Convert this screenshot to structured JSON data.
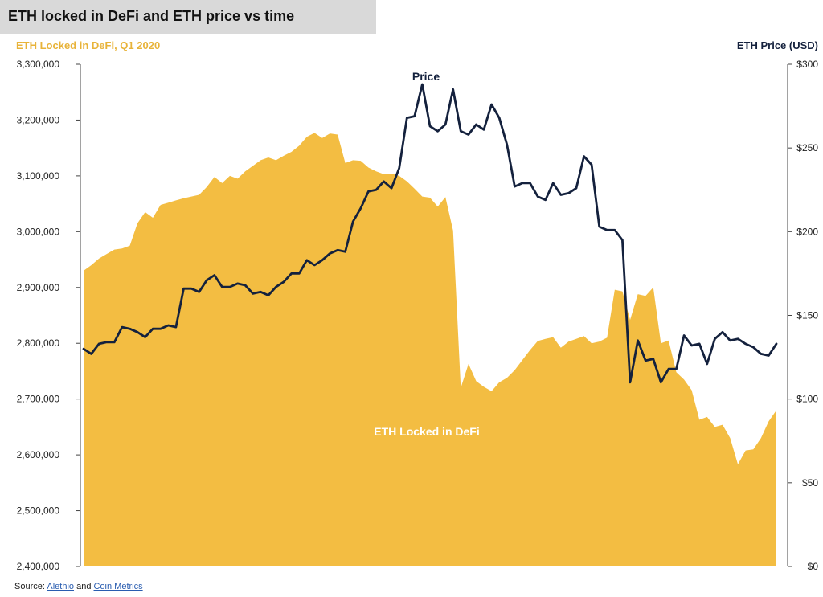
{
  "title": "ETH locked in DeFi and ETH price vs time",
  "source": {
    "prefix": "Source:",
    "link1": "Alethio",
    "joiner": "and",
    "link2": "Coin Metrics"
  },
  "colors": {
    "area": "#f3bd42",
    "line": "#14213d",
    "left_axis_label": "#e8b339",
    "right_axis_label": "#14213d",
    "title_bg": "#d9d9d9"
  },
  "chart_data": {
    "type": "area",
    "ylabel_left": "ETH Locked in DeFi, Q1 2020",
    "ylabel_right": "ETH Price (USD)",
    "ylim_left": [
      2400000,
      3300000
    ],
    "ylim_right": [
      0,
      300
    ],
    "yticks_left": [
      "3,300,000",
      "3,200,000",
      "3,100,000",
      "3,000,000",
      "2,900,000",
      "2,800,000",
      "2,700,000",
      "2,600,000",
      "2,500,000",
      "2,400,000"
    ],
    "yticks_right": [
      "$300",
      "$250",
      "$200",
      "$150",
      "$100",
      "$50",
      "$0"
    ],
    "annotations": {
      "price_label": "Price",
      "area_label": "ETH Locked in DeFi"
    },
    "series": [
      {
        "name": "ETH Locked in DeFi",
        "type": "area",
        "axis": "left",
        "x": [
          0,
          1,
          2,
          3,
          4,
          5,
          6,
          7,
          8,
          9,
          10,
          11,
          12,
          13,
          14,
          15,
          16,
          17,
          18,
          19,
          20,
          21,
          22,
          23,
          24,
          25,
          26,
          27,
          28,
          29,
          30,
          31,
          32,
          33,
          34,
          35,
          36,
          37,
          38,
          39,
          40,
          41,
          42,
          43,
          44,
          45,
          46,
          47,
          48,
          49,
          50,
          51,
          52,
          53,
          54,
          55,
          56,
          57,
          58,
          59,
          60,
          61,
          62,
          63,
          64,
          65,
          66,
          67,
          68,
          69,
          70,
          71,
          72,
          73,
          74,
          75,
          76,
          77,
          78,
          79,
          80,
          81,
          82,
          83,
          84,
          85,
          86,
          87,
          88,
          89,
          90
        ],
        "values": [
          2930000,
          2940000,
          2952000,
          2960000,
          2968000,
          2970000,
          2975000,
          3015000,
          3035000,
          3025000,
          3048000,
          3052000,
          3056000,
          3060000,
          3063000,
          3066000,
          3080000,
          3098000,
          3087000,
          3100000,
          3095000,
          3108000,
          3118000,
          3128000,
          3133000,
          3128000,
          3136000,
          3143000,
          3154000,
          3170000,
          3177000,
          3168000,
          3176000,
          3174000,
          3123000,
          3128000,
          3127000,
          3115000,
          3108000,
          3103000,
          3104000,
          3100000,
          3090000,
          3077000,
          3063000,
          3061000,
          3045000,
          3062000,
          3002000,
          2720000,
          2763000,
          2732000,
          2722000,
          2714000,
          2730000,
          2738000,
          2752000,
          2770000,
          2788000,
          2804000,
          2808000,
          2811000,
          2792000,
          2803000,
          2808000,
          2813000,
          2800000,
          2803000,
          2810000,
          2896000,
          2893000,
          2842000,
          2888000,
          2885000,
          2900000,
          2800000,
          2805000,
          2748000,
          2735000,
          2716000,
          2663000,
          2668000,
          2650000,
          2654000,
          2630000,
          2583000,
          2608000,
          2610000,
          2630000,
          2660000,
          2680000
        ]
      },
      {
        "name": "Price",
        "type": "line",
        "axis": "right",
        "x": [
          0,
          1,
          2,
          3,
          4,
          5,
          6,
          7,
          8,
          9,
          10,
          11,
          12,
          13,
          14,
          15,
          16,
          17,
          18,
          19,
          20,
          21,
          22,
          23,
          24,
          25,
          26,
          27,
          28,
          29,
          30,
          31,
          32,
          33,
          34,
          35,
          36,
          37,
          38,
          39,
          40,
          41,
          42,
          43,
          44,
          45,
          46,
          47,
          48,
          49,
          50,
          51,
          52,
          53,
          54,
          55,
          56,
          57,
          58,
          59,
          60,
          61,
          62,
          63,
          64,
          65,
          66,
          67,
          68,
          69,
          70,
          71,
          72,
          73,
          74,
          75,
          76,
          77,
          78,
          79,
          80,
          81,
          82,
          83,
          84,
          85,
          86,
          87,
          88,
          89,
          90
        ],
        "values": [
          130,
          127,
          133,
          134,
          134,
          143,
          142,
          140,
          137,
          142,
          142,
          144,
          143,
          166,
          166,
          164,
          171,
          174,
          167,
          167,
          169,
          168,
          163,
          164,
          162,
          167,
          170,
          175,
          175,
          183,
          180,
          183,
          187,
          189,
          188,
          206,
          214,
          224,
          225,
          230,
          226,
          238,
          268,
          269,
          288,
          263,
          260,
          264,
          285,
          260,
          258,
          264,
          261,
          276,
          268,
          252,
          227,
          229,
          229,
          221,
          219,
          229,
          222,
          223,
          226,
          245,
          240,
          203,
          201,
          201,
          195,
          110,
          135,
          123,
          124,
          110,
          118,
          118,
          138,
          132,
          133,
          121,
          136,
          140,
          135,
          136,
          133,
          131,
          127,
          126,
          133
        ]
      }
    ]
  }
}
